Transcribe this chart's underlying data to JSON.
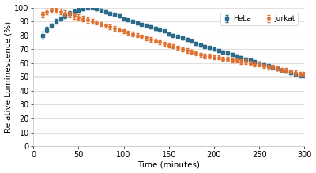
{
  "title": "",
  "xlabel": "Time (minutes)",
  "ylabel": "Relative Luminescence (%)",
  "xlim": [
    0,
    300
  ],
  "ylim": [
    0,
    100
  ],
  "xticks": [
    0,
    50,
    100,
    150,
    200,
    250,
    300
  ],
  "yticks": [
    0,
    10,
    20,
    30,
    40,
    50,
    60,
    70,
    80,
    90,
    100
  ],
  "hline_y": 50,
  "hline_color": "#888888",
  "hela_color": "#2b6a8a",
  "jurkat_color": "#e07030",
  "background_color": "#ffffff",
  "fig_facecolor": "#ffffff",
  "grid_color": "#e0e0e0",
  "hela_times": [
    10,
    15,
    20,
    25,
    30,
    35,
    40,
    45,
    50,
    55,
    60,
    65,
    70,
    75,
    80,
    85,
    90,
    95,
    100,
    105,
    110,
    115,
    120,
    125,
    130,
    135,
    140,
    145,
    150,
    155,
    160,
    165,
    170,
    175,
    180,
    185,
    190,
    195,
    200,
    205,
    210,
    215,
    220,
    225,
    230,
    235,
    240,
    245,
    250,
    255,
    260,
    265,
    270,
    275,
    280,
    285,
    290,
    295,
    300
  ],
  "hela_values": [
    80,
    84,
    87,
    90,
    92,
    94,
    96,
    97,
    98,
    99,
    100,
    100,
    99,
    98,
    97,
    96,
    95,
    94,
    92,
    91,
    90,
    89,
    88,
    87,
    86,
    85,
    84,
    83,
    81,
    80,
    79,
    78,
    77,
    76,
    74,
    73,
    72,
    71,
    70,
    69,
    68,
    67,
    66,
    65,
    64,
    63,
    62,
    61,
    60,
    59,
    58,
    57,
    56,
    55,
    54,
    53,
    52,
    51,
    51
  ],
  "hela_errors": [
    2.5,
    2,
    1.5,
    1.5,
    1.5,
    1.5,
    1.5,
    1.5,
    1.5,
    1,
    1,
    1,
    1,
    1,
    1,
    1,
    1,
    1,
    1,
    1,
    1,
    1,
    1,
    1,
    1,
    1,
    1,
    1,
    1,
    1,
    1,
    1,
    1,
    1,
    1,
    1,
    1,
    1,
    1,
    1,
    1,
    1,
    1,
    1,
    1,
    1,
    1,
    1,
    1,
    1,
    1,
    1,
    1,
    1,
    1,
    1,
    1,
    1,
    1
  ],
  "jurkat_times": [
    10,
    15,
    20,
    25,
    30,
    35,
    40,
    45,
    50,
    55,
    60,
    65,
    70,
    75,
    80,
    85,
    90,
    95,
    100,
    105,
    110,
    115,
    120,
    125,
    130,
    135,
    140,
    145,
    150,
    155,
    160,
    165,
    170,
    175,
    180,
    185,
    190,
    195,
    200,
    205,
    210,
    215,
    220,
    225,
    230,
    235,
    240,
    245,
    250,
    255,
    260,
    265,
    270,
    275,
    280,
    285,
    290,
    295,
    300
  ],
  "jurkat_values": [
    95,
    97,
    98,
    98,
    97,
    96,
    95,
    94,
    93,
    92,
    91,
    90,
    89,
    88,
    87,
    86,
    85,
    84,
    83,
    82,
    81,
    80,
    79,
    78,
    77,
    76,
    75,
    74,
    73,
    72,
    71,
    70,
    69,
    68,
    67,
    66,
    65,
    65,
    64,
    64,
    63,
    63,
    62,
    62,
    61,
    61,
    60,
    59,
    59,
    58,
    57,
    57,
    56,
    55,
    55,
    54,
    53,
    52,
    52
  ],
  "jurkat_errors": [
    2,
    2,
    1.5,
    1.5,
    2,
    2,
    2,
    2,
    2,
    2,
    2,
    1.5,
    1.5,
    1.5,
    1.5,
    1.5,
    1.5,
    1.5,
    1.5,
    1.5,
    1.5,
    1.5,
    1.5,
    1.5,
    1.5,
    1.5,
    1.5,
    1.5,
    1.5,
    1.5,
    1.5,
    1.5,
    1.5,
    1.5,
    1.5,
    1.5,
    1.5,
    1.5,
    1.5,
    1.5,
    1.5,
    1.5,
    1.5,
    1.5,
    1.5,
    1.5,
    1.5,
    1.5,
    1.5,
    1.5,
    1.5,
    1.5,
    1.5,
    1.5,
    1.5,
    1.5,
    1.5,
    1.5,
    1.5
  ]
}
